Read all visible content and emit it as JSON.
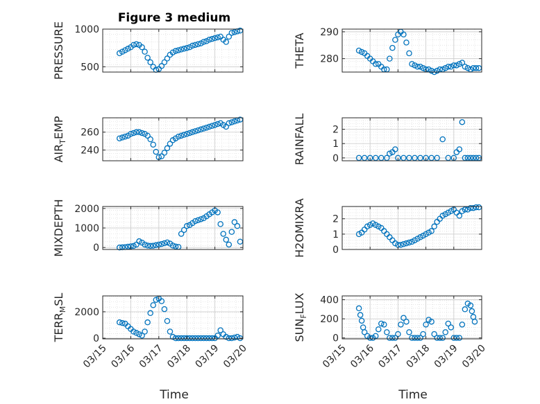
{
  "figure": {
    "title": "Figure 3 medium",
    "marker_color": "#0072BD",
    "x_ticks": [
      "03/15",
      "03/16",
      "03/17",
      "03/18",
      "03/19",
      "03/20"
    ],
    "x_label": "Time"
  },
  "chart_data": [
    {
      "type": "scatter",
      "ylabel": "PRESSURE",
      "xlim": [
        0,
        5
      ],
      "ylim": [
        430,
        1000
      ],
      "yticks": [
        500,
        1000
      ],
      "grid": true,
      "x": [
        0.6,
        0.7,
        0.8,
        0.9,
        1.0,
        1.1,
        1.2,
        1.3,
        1.4,
        1.5,
        1.6,
        1.7,
        1.8,
        1.9,
        2.0,
        2.1,
        2.2,
        2.3,
        2.4,
        2.5,
        2.6,
        2.7,
        2.8,
        2.9,
        3.0,
        3.1,
        3.2,
        3.3,
        3.4,
        3.5,
        3.6,
        3.7,
        3.8,
        3.9,
        4.0,
        4.1,
        4.2,
        4.3,
        4.4,
        4.5,
        4.6,
        4.7,
        4.8,
        4.9
      ],
      "y": [
        680,
        700,
        720,
        740,
        760,
        790,
        800,
        790,
        760,
        700,
        620,
        560,
        500,
        460,
        470,
        510,
        560,
        610,
        660,
        690,
        710,
        720,
        730,
        740,
        750,
        760,
        780,
        790,
        800,
        810,
        830,
        840,
        860,
        870,
        880,
        890,
        900,
        860,
        830,
        900,
        950,
        960,
        970,
        980
      ]
    },
    {
      "type": "scatter",
      "ylabel": "THETA",
      "xlim": [
        0,
        5
      ],
      "ylim": [
        275,
        291
      ],
      "yticks": [
        280,
        290
      ],
      "grid": true,
      "x": [
        0.6,
        0.7,
        0.8,
        0.9,
        1.0,
        1.1,
        1.2,
        1.3,
        1.4,
        1.5,
        1.6,
        1.7,
        1.8,
        1.9,
        2.0,
        2.1,
        2.2,
        2.3,
        2.4,
        2.5,
        2.6,
        2.7,
        2.8,
        2.9,
        3.0,
        3.1,
        3.2,
        3.3,
        3.4,
        3.5,
        3.6,
        3.7,
        3.8,
        3.9,
        4.0,
        4.1,
        4.2,
        4.3,
        4.4,
        4.5,
        4.6,
        4.7,
        4.8,
        4.9
      ],
      "y": [
        283,
        282.5,
        282,
        281,
        280,
        279,
        278,
        278,
        277,
        276,
        276,
        280,
        284,
        287,
        289,
        290,
        289,
        286,
        282,
        278,
        277.5,
        277,
        277,
        276.5,
        276,
        276,
        275.5,
        275,
        275.5,
        276,
        276,
        276.5,
        277,
        277,
        277.5,
        277.5,
        278,
        278.5,
        277,
        276.5,
        276,
        276.5,
        276.5,
        276.5
      ]
    },
    {
      "type": "scatter",
      "ylabel": "AIR_TEMP",
      "xlim": [
        0,
        5
      ],
      "ylim": [
        228,
        276
      ],
      "yticks": [
        240,
        260
      ],
      "grid": true,
      "x": [
        0.6,
        0.7,
        0.8,
        0.9,
        1.0,
        1.1,
        1.2,
        1.3,
        1.4,
        1.5,
        1.6,
        1.7,
        1.8,
        1.9,
        2.0,
        2.1,
        2.2,
        2.3,
        2.4,
        2.5,
        2.6,
        2.7,
        2.8,
        2.9,
        3.0,
        3.1,
        3.2,
        3.3,
        3.4,
        3.5,
        3.6,
        3.7,
        3.8,
        3.9,
        4.0,
        4.1,
        4.2,
        4.3,
        4.4,
        4.5,
        4.6,
        4.7,
        4.8,
        4.9
      ],
      "y": [
        253,
        254,
        255,
        256,
        258,
        259,
        260,
        260,
        259,
        258,
        256,
        252,
        246,
        238,
        232,
        233,
        237,
        242,
        247,
        251,
        253,
        255,
        256,
        257,
        258,
        259,
        260,
        261,
        262,
        263,
        264,
        265,
        266,
        267,
        268,
        269,
        270,
        268,
        266,
        270,
        271,
        272,
        273,
        274
      ]
    },
    {
      "type": "scatter",
      "ylabel": "RAINFALL",
      "xlim": [
        0,
        5
      ],
      "ylim": [
        -0.2,
        2.8
      ],
      "yticks": [
        0,
        1,
        2
      ],
      "grid": true,
      "x": [
        0.6,
        0.8,
        1.0,
        1.2,
        1.4,
        1.6,
        1.7,
        1.8,
        1.9,
        2.0,
        2.2,
        2.4,
        2.6,
        2.8,
        3.0,
        3.2,
        3.4,
        3.6,
        3.8,
        4.0,
        4.1,
        4.2,
        4.3,
        4.4,
        4.5,
        4.6,
        4.7,
        4.8,
        4.9
      ],
      "y": [
        0,
        0,
        0,
        0,
        0,
        0,
        0.3,
        0.4,
        0.6,
        0,
        0,
        0,
        0,
        0,
        0,
        0,
        0,
        1.3,
        0,
        0,
        0.4,
        0.6,
        2.5,
        0,
        0,
        0,
        0,
        0,
        0
      ]
    },
    {
      "type": "scatter",
      "ylabel": "MIXDEPTH",
      "xlim": [
        0,
        5
      ],
      "ylim": [
        -100,
        2100
      ],
      "yticks": [
        0,
        1000,
        2000
      ],
      "grid": true,
      "x": [
        0.6,
        0.7,
        0.8,
        0.9,
        1.0,
        1.1,
        1.2,
        1.3,
        1.4,
        1.5,
        1.6,
        1.7,
        1.8,
        1.9,
        2.0,
        2.1,
        2.2,
        2.3,
        2.4,
        2.5,
        2.6,
        2.7,
        2.8,
        2.9,
        3.0,
        3.1,
        3.2,
        3.3,
        3.4,
        3.5,
        3.6,
        3.7,
        3.8,
        3.9,
        4.0,
        4.1,
        4.2,
        4.3,
        4.4,
        4.5,
        4.6,
        4.7,
        4.8,
        4.9
      ],
      "y": [
        0,
        10,
        20,
        40,
        60,
        80,
        150,
        320,
        250,
        150,
        100,
        80,
        90,
        120,
        150,
        180,
        220,
        260,
        200,
        100,
        50,
        30,
        700,
        900,
        1100,
        1150,
        1250,
        1350,
        1400,
        1450,
        1500,
        1600,
        1700,
        1800,
        1900,
        1800,
        1200,
        700,
        400,
        150,
        800,
        1300,
        1100,
        300
      ]
    },
    {
      "type": "scatter",
      "ylabel": "H2OMIXRA",
      "xlim": [
        0,
        5
      ],
      "ylim": [
        0,
        2.8
      ],
      "yticks": [
        0,
        1,
        2
      ],
      "grid": true,
      "x": [
        0.6,
        0.7,
        0.8,
        0.9,
        1.0,
        1.1,
        1.2,
        1.3,
        1.4,
        1.5,
        1.6,
        1.7,
        1.8,
        1.9,
        2.0,
        2.1,
        2.2,
        2.3,
        2.4,
        2.5,
        2.6,
        2.7,
        2.8,
        2.9,
        3.0,
        3.1,
        3.2,
        3.3,
        3.4,
        3.5,
        3.6,
        3.7,
        3.8,
        3.9,
        4.0,
        4.1,
        4.2,
        4.3,
        4.4,
        4.5,
        4.6,
        4.7,
        4.8,
        4.9
      ],
      "y": [
        1.0,
        1.1,
        1.3,
        1.5,
        1.6,
        1.7,
        1.6,
        1.5,
        1.4,
        1.2,
        1.0,
        0.8,
        0.6,
        0.4,
        0.3,
        0.3,
        0.35,
        0.4,
        0.45,
        0.5,
        0.6,
        0.7,
        0.8,
        0.9,
        1.0,
        1.1,
        1.2,
        1.5,
        1.8,
        2.0,
        2.2,
        2.3,
        2.4,
        2.5,
        2.6,
        2.4,
        2.2,
        2.5,
        2.6,
        2.6,
        2.7,
        2.7,
        2.75,
        2.75
      ]
    },
    {
      "type": "scatter",
      "ylabel": "TERR_MSL",
      "xlim": [
        0,
        5
      ],
      "ylim": [
        -50,
        3200
      ],
      "yticks": [
        0,
        2000
      ],
      "grid": true,
      "x": [
        0.6,
        0.7,
        0.8,
        0.9,
        1.0,
        1.1,
        1.2,
        1.3,
        1.4,
        1.5,
        1.6,
        1.7,
        1.8,
        1.9,
        2.0,
        2.1,
        2.2,
        2.3,
        2.4,
        2.5,
        2.6,
        2.7,
        2.8,
        2.9,
        3.0,
        3.1,
        3.2,
        3.3,
        3.4,
        3.5,
        3.6,
        3.7,
        3.8,
        3.9,
        4.0,
        4.1,
        4.2,
        4.3,
        4.4,
        4.5,
        4.6,
        4.7,
        4.8,
        4.9
      ],
      "y": [
        1200,
        1150,
        1100,
        900,
        700,
        500,
        400,
        300,
        200,
        500,
        1200,
        1900,
        2500,
        2900,
        3000,
        2800,
        2200,
        1300,
        500,
        100,
        0,
        0,
        0,
        0,
        0,
        0,
        0,
        0,
        0,
        0,
        0,
        0,
        0,
        0,
        0,
        200,
        600,
        300,
        100,
        0,
        0,
        50,
        100,
        0
      ]
    },
    {
      "type": "scatter",
      "ylabel": "SUN_FLUX",
      "xlim": [
        0,
        5
      ],
      "ylim": [
        -10,
        440
      ],
      "yticks": [
        0,
        200,
        400
      ],
      "grid": true,
      "x": [
        0.6,
        0.65,
        0.7,
        0.75,
        0.8,
        0.9,
        1.0,
        1.1,
        1.2,
        1.3,
        1.4,
        1.5,
        1.6,
        1.7,
        1.8,
        1.9,
        2.0,
        2.1,
        2.2,
        2.3,
        2.4,
        2.5,
        2.6,
        2.7,
        2.8,
        2.9,
        3.0,
        3.1,
        3.2,
        3.3,
        3.4,
        3.5,
        3.6,
        3.7,
        3.8,
        3.9,
        4.0,
        4.1,
        4.2,
        4.3,
        4.4,
        4.5,
        4.6,
        4.65,
        4.7,
        4.75
      ],
      "y": [
        310,
        240,
        180,
        110,
        60,
        20,
        0,
        0,
        20,
        90,
        150,
        140,
        60,
        0,
        0,
        0,
        40,
        140,
        210,
        170,
        60,
        0,
        0,
        0,
        0,
        40,
        140,
        190,
        170,
        40,
        0,
        0,
        0,
        60,
        150,
        110,
        0,
        0,
        0,
        140,
        300,
        360,
        340,
        280,
        220,
        170
      ]
    }
  ]
}
